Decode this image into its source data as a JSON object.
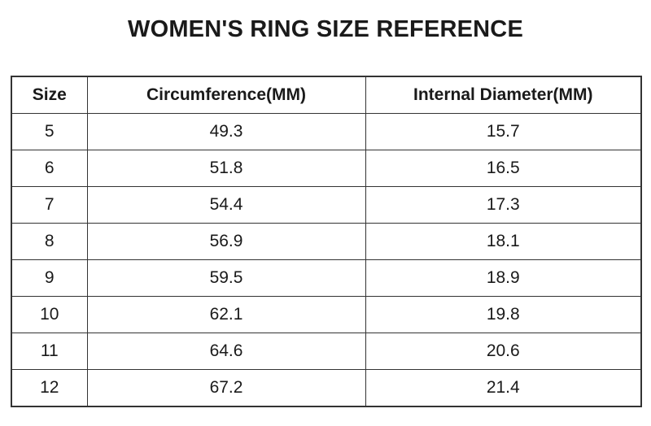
{
  "title": "WOMEN'S RING SIZE REFERENCE",
  "table": {
    "headers": [
      "Size",
      "Circumference(MM)",
      "Internal Diameter(MM)"
    ],
    "rows": [
      [
        "5",
        "49.3",
        "15.7"
      ],
      [
        "6",
        "51.8",
        "16.5"
      ],
      [
        "7",
        "54.4",
        "17.3"
      ],
      [
        "8",
        "56.9",
        "18.1"
      ],
      [
        "9",
        "59.5",
        "18.9"
      ],
      [
        "10",
        "62.1",
        "19.8"
      ],
      [
        "11",
        "64.6",
        "20.6"
      ],
      [
        "12",
        "67.2",
        "21.4"
      ]
    ]
  },
  "colors": {
    "background": "#ffffff",
    "text": "#1a1a1a",
    "border": "#333333"
  },
  "chart_data": {
    "type": "table",
    "title": "WOMEN'S RING SIZE REFERENCE",
    "columns": [
      "Size",
      "Circumference(MM)",
      "Internal Diameter(MM)"
    ],
    "sizes": [
      5,
      6,
      7,
      8,
      9,
      10,
      11,
      12
    ],
    "circumference_mm": [
      49.3,
      51.8,
      54.4,
      56.9,
      59.5,
      62.1,
      64.6,
      67.2
    ],
    "internal_diameter_mm": [
      15.7,
      16.5,
      17.3,
      18.1,
      18.9,
      19.8,
      20.6,
      21.4
    ]
  }
}
